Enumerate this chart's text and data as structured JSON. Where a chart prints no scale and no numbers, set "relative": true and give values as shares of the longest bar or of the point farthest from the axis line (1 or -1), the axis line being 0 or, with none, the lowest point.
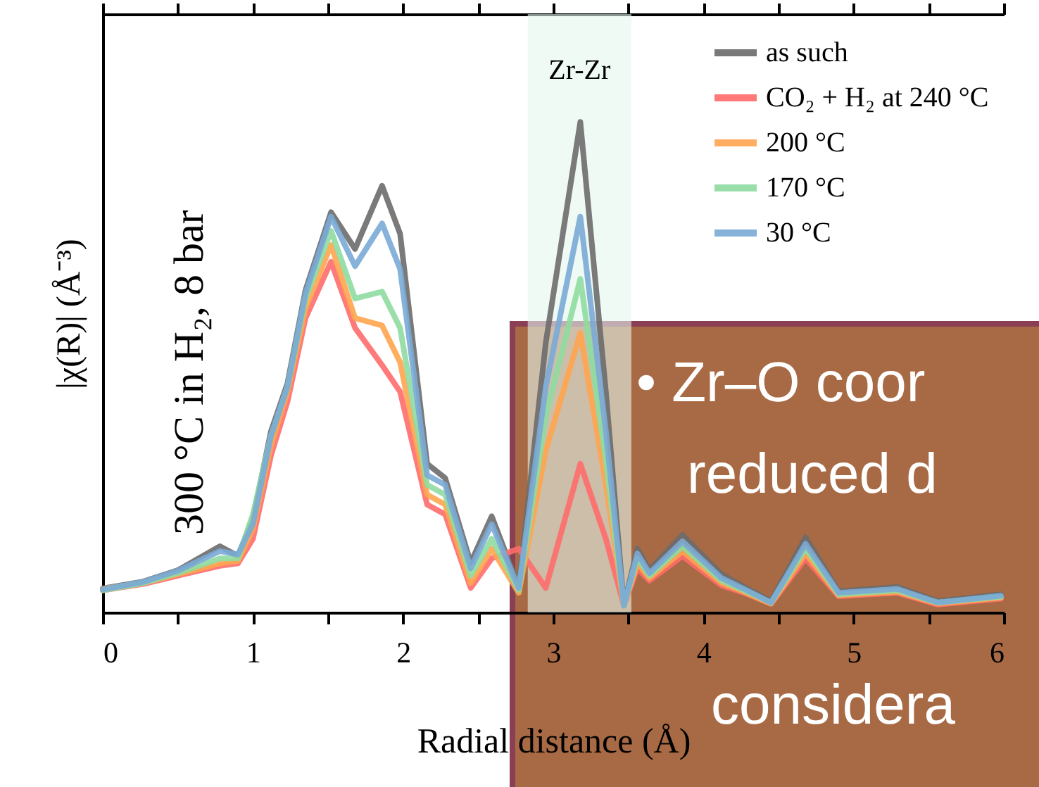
{
  "chart_data": {
    "type": "line",
    "xlabel": "Radial distance (Å)",
    "ylabel": "|χ(R)| (Å⁻³)",
    "relative": true,
    "x": [
      0,
      0.27,
      0.5,
      0.78,
      0.9,
      1.0,
      1.12,
      1.23,
      1.35,
      1.52,
      1.68,
      1.86,
      1.98,
      2.16,
      2.28,
      2.45,
      2.59,
      2.77,
      2.95,
      3.18,
      3.35,
      3.47,
      3.56,
      3.64,
      3.86,
      4.12,
      4.27,
      4.45,
      4.68,
      4.9,
      5.29,
      5.56,
      5.98
    ],
    "series": [
      {
        "name": "as such",
        "color": "#6b6b6b",
        "values": [
          0.049,
          0.063,
          0.086,
          0.135,
          0.115,
          0.19,
          0.369,
          0.467,
          0.657,
          0.816,
          0.741,
          0.87,
          0.772,
          0.303,
          0.274,
          0.101,
          0.196,
          0.052,
          0.55,
          1.0,
          0.45,
          0.014,
          0.13,
          0.086,
          0.158,
          0.078,
          0.052,
          0.023,
          0.153,
          0.043,
          0.052,
          0.023,
          0.037
        ]
      },
      {
        "name": "CO₂ + H₂ at 240 °C",
        "color": "#ff6b6b",
        "values": [
          0.045,
          0.058,
          0.075,
          0.095,
          0.1,
          0.15,
          0.32,
          0.43,
          0.6,
          0.715,
          0.58,
          0.504,
          0.45,
          0.22,
          0.2,
          0.05,
          0.11,
          0.13,
          0.05,
          0.303,
          0.15,
          0.014,
          0.09,
          0.065,
          0.115,
          0.055,
          0.04,
          0.018,
          0.11,
          0.033,
          0.04,
          0.016,
          0.028
        ]
      },
      {
        "name": "200 °C",
        "color": "#ffa54f",
        "values": [
          0.048,
          0.06,
          0.078,
          0.1,
          0.105,
          0.17,
          0.34,
          0.45,
          0.62,
          0.749,
          0.6,
          0.585,
          0.51,
          0.24,
          0.22,
          0.06,
          0.13,
          0.04,
          0.33,
          0.57,
          0.26,
          0.014,
          0.1,
          0.07,
          0.125,
          0.06,
          0.042,
          0.018,
          0.12,
          0.035,
          0.042,
          0.018,
          0.03
        ]
      },
      {
        "name": "170 °C",
        "color": "#8fdba0",
        "values": [
          0.045,
          0.06,
          0.08,
          0.11,
          0.11,
          0.2,
          0.36,
          0.46,
          0.64,
          0.778,
          0.64,
          0.654,
          0.58,
          0.26,
          0.24,
          0.075,
          0.15,
          0.045,
          0.4,
          0.68,
          0.31,
          0.014,
          0.11,
          0.075,
          0.135,
          0.065,
          0.045,
          0.02,
          0.13,
          0.037,
          0.045,
          0.02,
          0.032
        ]
      },
      {
        "name": "30 °C",
        "color": "#7aaad6",
        "values": [
          0.047,
          0.062,
          0.085,
          0.125,
          0.118,
          0.18,
          0.36,
          0.46,
          0.65,
          0.807,
          0.706,
          0.793,
          0.7,
          0.28,
          0.26,
          0.09,
          0.18,
          0.05,
          0.46,
          0.807,
          0.37,
          0.014,
          0.12,
          0.08,
          0.145,
          0.07,
          0.048,
          0.02,
          0.14,
          0.04,
          0.048,
          0.02,
          0.034
        ]
      }
    ],
    "xlim": [
      0,
      6
    ],
    "xticks": [
      0,
      {
        "value": 0.5,
        "label": null
      },
      1,
      {
        "value": 1.5,
        "label": null
      },
      2,
      {
        "value": 2.5,
        "label": null
      },
      3,
      {
        "value": 3.5,
        "label": null
      },
      4,
      {
        "value": 4.5,
        "label": null
      },
      5,
      {
        "value": 5.5,
        "label": null
      },
      6
    ],
    "bands": [
      {
        "axis": "x",
        "from": 2.83,
        "to": 3.52,
        "label": "Zr-Zr",
        "color": "#e6f7ef"
      }
    ],
    "annotations": [
      "300 °C in H₂, 8 bar",
      "• Zr–O coor",
      "reduced d",
      "considera"
    ],
    "legend": "top right",
    "grid": false,
    "marker": "none",
    "line_style": "solid"
  }
}
